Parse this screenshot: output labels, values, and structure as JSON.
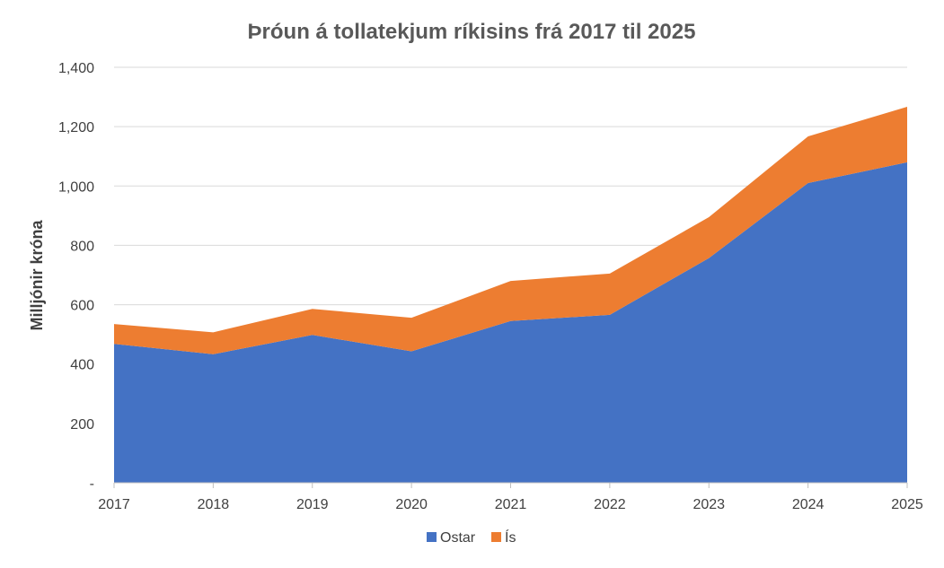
{
  "chart_data": {
    "type": "area",
    "stacked": true,
    "title": "Þróun á tollatekjum ríkisins frá 2017 til 2025",
    "xlabel": "",
    "ylabel": "Milljónir króna",
    "categories": [
      "2017",
      "2018",
      "2019",
      "2020",
      "2021",
      "2022",
      "2023",
      "2024",
      "2025"
    ],
    "ylim": [
      0,
      1400
    ],
    "yticks": [
      0,
      200,
      400,
      600,
      800,
      1000,
      1200,
      1400
    ],
    "ytick_labels": [
      "-",
      "200",
      "400",
      "600",
      "800",
      "1,000",
      "1,200",
      "1,400"
    ],
    "grid": true,
    "legend_position": "bottom",
    "series": [
      {
        "name": "Ostar",
        "color": "#4472C4",
        "values": [
          468,
          433,
          498,
          443,
          545,
          566,
          757,
          1010,
          1080
        ]
      },
      {
        "name": "Ís",
        "color": "#ED7D31",
        "values": [
          67,
          74,
          88,
          113,
          135,
          139,
          138,
          157,
          187
        ]
      }
    ]
  }
}
